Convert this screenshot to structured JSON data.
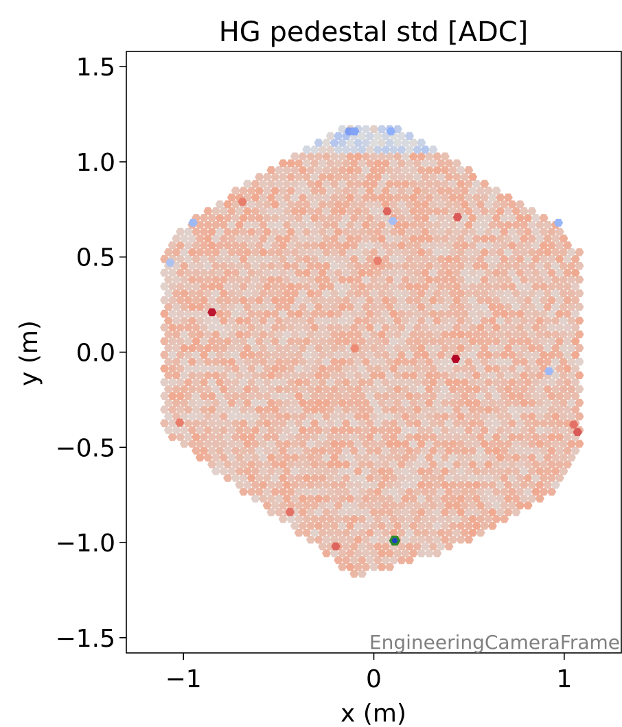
{
  "chart_data": {
    "type": "heatmap",
    "title": "HG pedestal std [ADC]",
    "xlabel": "x  (m)",
    "ylabel": "y  (m)",
    "xlim": [
      -1.3,
      1.3
    ],
    "ylim": [
      -1.58,
      1.58
    ],
    "xticks": [
      {
        "v": -1,
        "label": "−1"
      },
      {
        "v": 0,
        "label": "0"
      },
      {
        "v": 1,
        "label": "1"
      }
    ],
    "yticks": [
      {
        "v": 1.5,
        "label": "1.5"
      },
      {
        "v": 1.0,
        "label": "1.0"
      },
      {
        "v": 0.5,
        "label": "0.5"
      },
      {
        "v": 0.0,
        "label": "0.0"
      },
      {
        "v": -0.5,
        "label": "−0.5"
      },
      {
        "v": -1.0,
        "label": "−1.0"
      },
      {
        "v": -1.5,
        "label": "−1.5"
      }
    ],
    "grid": false,
    "annotation": "EngineeringCameraFrame",
    "colormap": "coolwarm",
    "camera_outline": [
      [
        -0.13,
        1.19
      ],
      [
        0.12,
        1.19
      ],
      [
        0.98,
        0.66
      ],
      [
        1.1,
        0.5
      ],
      [
        1.1,
        -0.47
      ],
      [
        0.98,
        -0.72
      ],
      [
        0.4,
        -1.04
      ],
      [
        -0.1,
        -1.18
      ],
      [
        -1.1,
        -0.42
      ],
      [
        -1.1,
        0.53
      ],
      [
        -0.97,
        0.7
      ],
      [
        -0.28,
        1.12
      ]
    ],
    "pixel_pitch": 0.0415,
    "baseline_value": 0.62,
    "hot_pixels": [
      {
        "x": -0.85,
        "y": 0.21,
        "v": 0.97
      },
      {
        "x": 0.43,
        "y": -0.035,
        "v": 1.0
      },
      {
        "x": 0.44,
        "y": 0.71,
        "v": 0.86
      },
      {
        "x": -0.69,
        "y": 0.79,
        "v": 0.8
      },
      {
        "x": 0.07,
        "y": 0.74,
        "v": 0.84
      },
      {
        "x": 0.02,
        "y": 0.48,
        "v": 0.8
      },
      {
        "x": -0.44,
        "y": -0.84,
        "v": 0.82
      },
      {
        "x": -0.2,
        "y": -1.02,
        "v": 0.84
      },
      {
        "x": 1.07,
        "y": -0.42,
        "v": 0.86
      },
      {
        "x": 1.05,
        "y": -0.38,
        "v": 0.82
      },
      {
        "x": -1.02,
        "y": -0.37,
        "v": 0.8
      },
      {
        "x": -0.1,
        "y": 0.02,
        "v": 0.78
      }
    ],
    "cold_pixels": [
      {
        "x": -0.13,
        "y": 1.16,
        "v": 0.2
      },
      {
        "x": -0.1,
        "y": 1.16,
        "v": 0.22
      },
      {
        "x": 0.09,
        "y": 1.16,
        "v": 0.25
      },
      {
        "x": 0.92,
        "y": -0.1,
        "v": 0.3
      },
      {
        "x": -0.95,
        "y": 0.68,
        "v": 0.3
      },
      {
        "x": 0.97,
        "y": 0.68,
        "v": 0.28
      },
      {
        "x": -1.07,
        "y": 0.47,
        "v": 0.35
      },
      {
        "x": 0.1,
        "y": 0.69,
        "v": 0.33
      }
    ],
    "highlighted_pixel": {
      "x": 0.11,
      "y": -0.99,
      "fill": "#1f3fc4",
      "outline": "#2c8a2c"
    }
  }
}
